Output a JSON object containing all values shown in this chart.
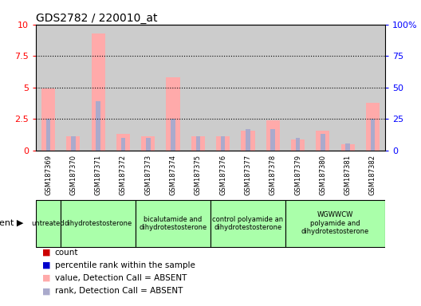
{
  "title": "GDS2782 / 220010_at",
  "samples": [
    "GSM187369",
    "GSM187370",
    "GSM187371",
    "GSM187372",
    "GSM187373",
    "GSM187374",
    "GSM187375",
    "GSM187376",
    "GSM187377",
    "GSM187378",
    "GSM187379",
    "GSM187380",
    "GSM187381",
    "GSM187382"
  ],
  "pink_values": [
    4.9,
    1.1,
    9.3,
    1.3,
    1.1,
    5.8,
    1.1,
    1.1,
    1.6,
    2.4,
    0.9,
    1.6,
    0.5,
    3.8
  ],
  "blue_values": [
    2.5,
    1.1,
    3.9,
    1.0,
    1.0,
    2.5,
    1.1,
    1.1,
    1.7,
    1.7,
    1.0,
    1.3,
    0.55,
    2.5
  ],
  "ylim": [
    0,
    10
  ],
  "yticks": [
    0,
    2.5,
    5.0,
    7.5,
    10
  ],
  "ytick_labels": [
    "0",
    "2.5",
    "5",
    "7.5",
    "10"
  ],
  "y2ticks": [
    0,
    25,
    50,
    75,
    100
  ],
  "y2tick_labels": [
    "0",
    "25",
    "50",
    "75",
    "100%"
  ],
  "group_boundaries": [
    0,
    1,
    4,
    7,
    10,
    14
  ],
  "group_labels": [
    "untreated",
    "dihydrotestosterone",
    "bicalutamide and\ndihydrotestosterone",
    "control polyamide an\ndihydrotestosterone",
    "WGWWCW\npolyamide and\ndihydrotestosterone"
  ],
  "group_color": "#aaffaa",
  "pink_color": "#ffaaaa",
  "blue_color": "#aaaacc",
  "red_color": "#cc0000",
  "darkblue_color": "#0000cc",
  "bg_color": "#cccccc",
  "white_color": "#ffffff",
  "legend_labels": [
    "count",
    "percentile rank within the sample",
    "value, Detection Call = ABSENT",
    "rank, Detection Call = ABSENT"
  ],
  "legend_colors": [
    "#cc0000",
    "#0000cc",
    "#ffaaaa",
    "#aaaacc"
  ]
}
